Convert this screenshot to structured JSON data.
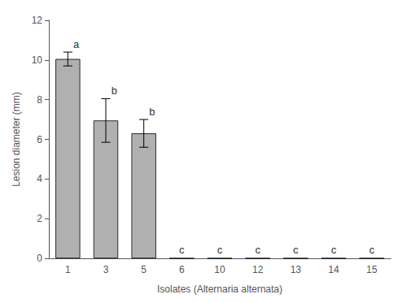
{
  "chart_data": {
    "type": "bar",
    "xlabel": "Isolates (Alternaria alternata)",
    "ylabel": "Lesion diameter (mm)",
    "categories": [
      "1",
      "3",
      "5",
      "6",
      "10",
      "12",
      "13",
      "14",
      "15"
    ],
    "values": [
      10.05,
      6.95,
      6.3,
      0.0,
      0.0,
      0.0,
      0.0,
      0.0,
      0.0
    ],
    "errors": [
      0.35,
      1.1,
      0.7,
      0.0,
      0.0,
      0.0,
      0.0,
      0.0,
      0.0
    ],
    "letters": [
      "a",
      "b",
      "b",
      "c",
      "c",
      "c",
      "c",
      "c",
      "c"
    ],
    "color": "#b0b0b0",
    "ylim": [
      0,
      12
    ],
    "yticks": [
      0,
      2,
      4,
      6,
      8,
      10,
      12
    ],
    "grid": false
  }
}
